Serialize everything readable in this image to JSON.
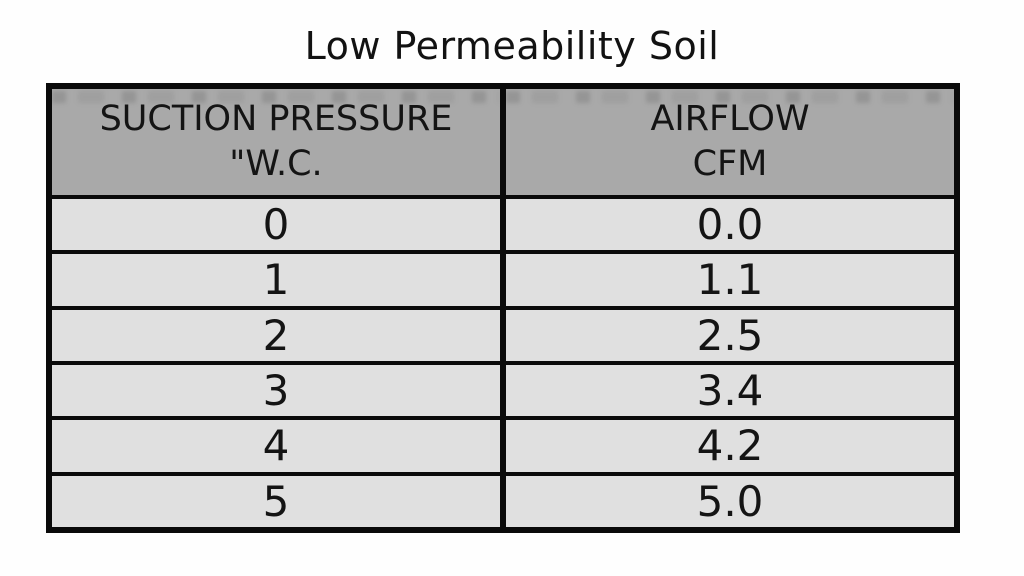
{
  "title": "Low Permeability Soil",
  "table": {
    "header": {
      "col1_line1": "SUCTION PRESSURE",
      "col1_line2": "\"W.C.",
      "col2_line1": "AIRFLOW",
      "col2_line2": "CFM"
    },
    "rows": [
      {
        "pressure": "0",
        "airflow": "0.0"
      },
      {
        "pressure": "1",
        "airflow": "1.1"
      },
      {
        "pressure": "2",
        "airflow": "2.5"
      },
      {
        "pressure": "3",
        "airflow": "3.4"
      },
      {
        "pressure": "4",
        "airflow": "4.2"
      },
      {
        "pressure": "5",
        "airflow": "5.0"
      }
    ]
  },
  "colors": {
    "page_bg": "#fefefe",
    "header_bg": "#a9a9a9",
    "row_bg": "#e0e0e0",
    "border": "#0a0a0a",
    "text": "#141414"
  },
  "chart_data": {
    "type": "table",
    "title": "Low Permeability Soil",
    "columns": [
      "SUCTION PRESSURE \"W.C.",
      "AIRFLOW CFM"
    ],
    "rows": [
      [
        0,
        0.0
      ],
      [
        1,
        1.1
      ],
      [
        2,
        2.5
      ],
      [
        3,
        3.4
      ],
      [
        4,
        4.2
      ],
      [
        5,
        5.0
      ]
    ],
    "x": [
      0,
      1,
      2,
      3,
      4,
      5
    ],
    "series": [
      {
        "name": "Airflow (CFM)",
        "values": [
          0.0,
          1.1,
          2.5,
          3.4,
          4.2,
          5.0
        ]
      }
    ],
    "xlabel": "Suction Pressure (\"W.C.)",
    "ylabel": "Airflow (CFM)"
  }
}
